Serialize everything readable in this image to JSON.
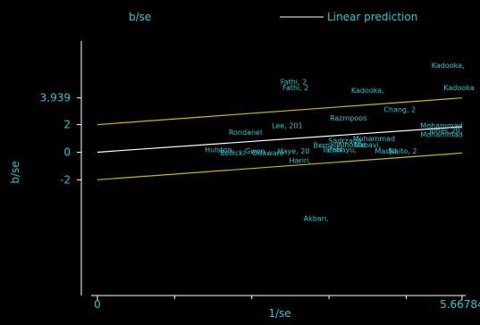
{
  "chart_data": {
    "type": "scatter",
    "title_top_left": "b/se",
    "legend": {
      "label": "Linear prediction",
      "placement": "top"
    },
    "xlabel": "1/se",
    "ylabel": "b/se",
    "xlim": [
      -0.25,
      5.85
    ],
    "ylim": [
      -10.4,
      9.1
    ],
    "x_ticks": [
      {
        "value": 0,
        "label": "0"
      },
      {
        "value": 5.66784,
        "label": "5.66784"
      }
    ],
    "x_minor_ticks": [
      1.2,
      2.4,
      3.6,
      4.8
    ],
    "y_ticks": [
      {
        "value": 3.939,
        "label": "3.939"
      },
      {
        "value": 2,
        "label": "2"
      },
      {
        "value": 0,
        "label": "0"
      },
      {
        "value": -2,
        "label": "-2"
      }
    ],
    "lines": {
      "prediction": {
        "from": [
          0,
          0
        ],
        "to": [
          5.66784,
          1.85
        ]
      },
      "upper_band": {
        "from": [
          0,
          2
        ],
        "to": [
          5.66784,
          3.939
        ]
      },
      "lower_band": {
        "from": [
          0,
          -2
        ],
        "to": [
          5.66784,
          -0.061
        ]
      }
    },
    "points": [
      {
        "label": "Kadooka,",
        "x": 5.45,
        "y": 6.3
      },
      {
        "label": "Kadooka",
        "x": 5.62,
        "y": 4.7
      },
      {
        "label": "Fathi, 2",
        "x": 3.05,
        "y": 5.1
      },
      {
        "label": "Fathi, 2",
        "x": 3.08,
        "y": 4.7
      },
      {
        "label": "Kadooka,",
        "x": 4.2,
        "y": 4.5
      },
      {
        "label": "Chang, 2",
        "x": 4.7,
        "y": 3.1
      },
      {
        "label": "Razmpoos",
        "x": 3.9,
        "y": 2.5
      },
      {
        "label": "Mohammad",
        "x": 5.35,
        "y": 1.95
      },
      {
        "label": "Lee, 201",
        "x": 2.95,
        "y": 1.95
      },
      {
        "label": "Jones,20",
        "x": 5.4,
        "y": 1.6
      },
      {
        "label": "Mohammad",
        "x": 5.35,
        "y": 1.3
      },
      {
        "label": "Rondanel",
        "x": 2.3,
        "y": 1.45
      },
      {
        "label": "Mohammad",
        "x": 4.3,
        "y": 1.0
      },
      {
        "label": "Sadrzade",
        "x": 3.85,
        "y": 0.85
      },
      {
        "label": "Alhosse",
        "x": 3.95,
        "y": 0.55
      },
      {
        "label": "Nabavi,",
        "x": 4.2,
        "y": 0.55
      },
      {
        "label": "Bernell",
        "x": 3.55,
        "y": 0.5
      },
      {
        "label": "Zahayu,",
        "x": 3.8,
        "y": 0.2
      },
      {
        "label": "Tarraf",
        "x": 3.65,
        "y": 0.2
      },
      {
        "label": "Madjd,",
        "x": 4.5,
        "y": 0.1
      },
      {
        "label": "Naito, 2",
        "x": 4.75,
        "y": 0.1
      },
      {
        "label": "Hulston,",
        "x": 1.9,
        "y": 0.2
      },
      {
        "label": "Bellicki",
        "x": 2.1,
        "y": -0.05
      },
      {
        "label": "Odaware",
        "x": 2.65,
        "y": -0.05
      },
      {
        "label": "Gwen",
        "x": 2.45,
        "y": 0.1
      },
      {
        "label": "Haye, 20",
        "x": 3.05,
        "y": 0.1
      },
      {
        "label": "Hariri,",
        "x": 3.15,
        "y": -0.6
      },
      {
        "label": "Akbari,",
        "x": 3.4,
        "y": -4.8
      }
    ]
  }
}
